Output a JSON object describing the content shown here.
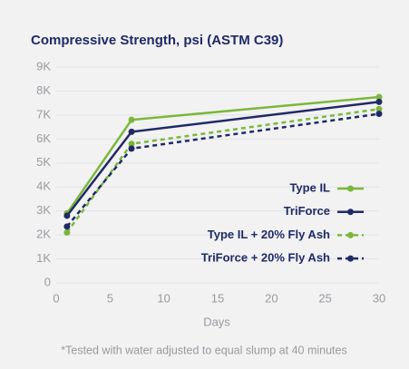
{
  "chart_data": {
    "type": "line",
    "title": "Compressive Strength, psi (ASTM C39)",
    "x_label": "Days",
    "footnote": "*Tested with water adjusted to equal slump at 40 minutes",
    "x": [
      1,
      7,
      30
    ],
    "series": [
      {
        "name": "Type IL",
        "color": "#7ab83a",
        "linestyle": "solid",
        "values": [
          2900,
          6800,
          7750
        ]
      },
      {
        "name": "TriForce",
        "color": "#1f2a66",
        "linestyle": "solid",
        "values": [
          2800,
          6300,
          7550
        ]
      },
      {
        "name": "Type IL + 20% Fly Ash",
        "color": "#7ab83a",
        "linestyle": "dashed",
        "values": [
          2100,
          5800,
          7250
        ]
      },
      {
        "name": "TriForce + 20% Fly Ash",
        "color": "#1f2a66",
        "linestyle": "dashed",
        "values": [
          2350,
          5600,
          7050
        ]
      }
    ],
    "xlim": [
      0,
      30
    ],
    "xticks": [
      0,
      5,
      10,
      15,
      20,
      25,
      30
    ],
    "ylim": [
      0,
      9000
    ],
    "yticks": [
      0,
      {
        "value": 1000,
        "label": "1K"
      },
      {
        "value": 2000,
        "label": "2K"
      },
      {
        "value": 3000,
        "label": "3K"
      },
      {
        "value": 4000,
        "label": "4K"
      },
      {
        "value": 5000,
        "label": "5K"
      },
      {
        "value": 6000,
        "label": "6K"
      },
      {
        "value": 7000,
        "label": "7K"
      },
      {
        "value": 8000,
        "label": "8K"
      },
      {
        "value": 9000,
        "label": "9K"
      }
    ],
    "grid": true,
    "legend": "lower right"
  }
}
